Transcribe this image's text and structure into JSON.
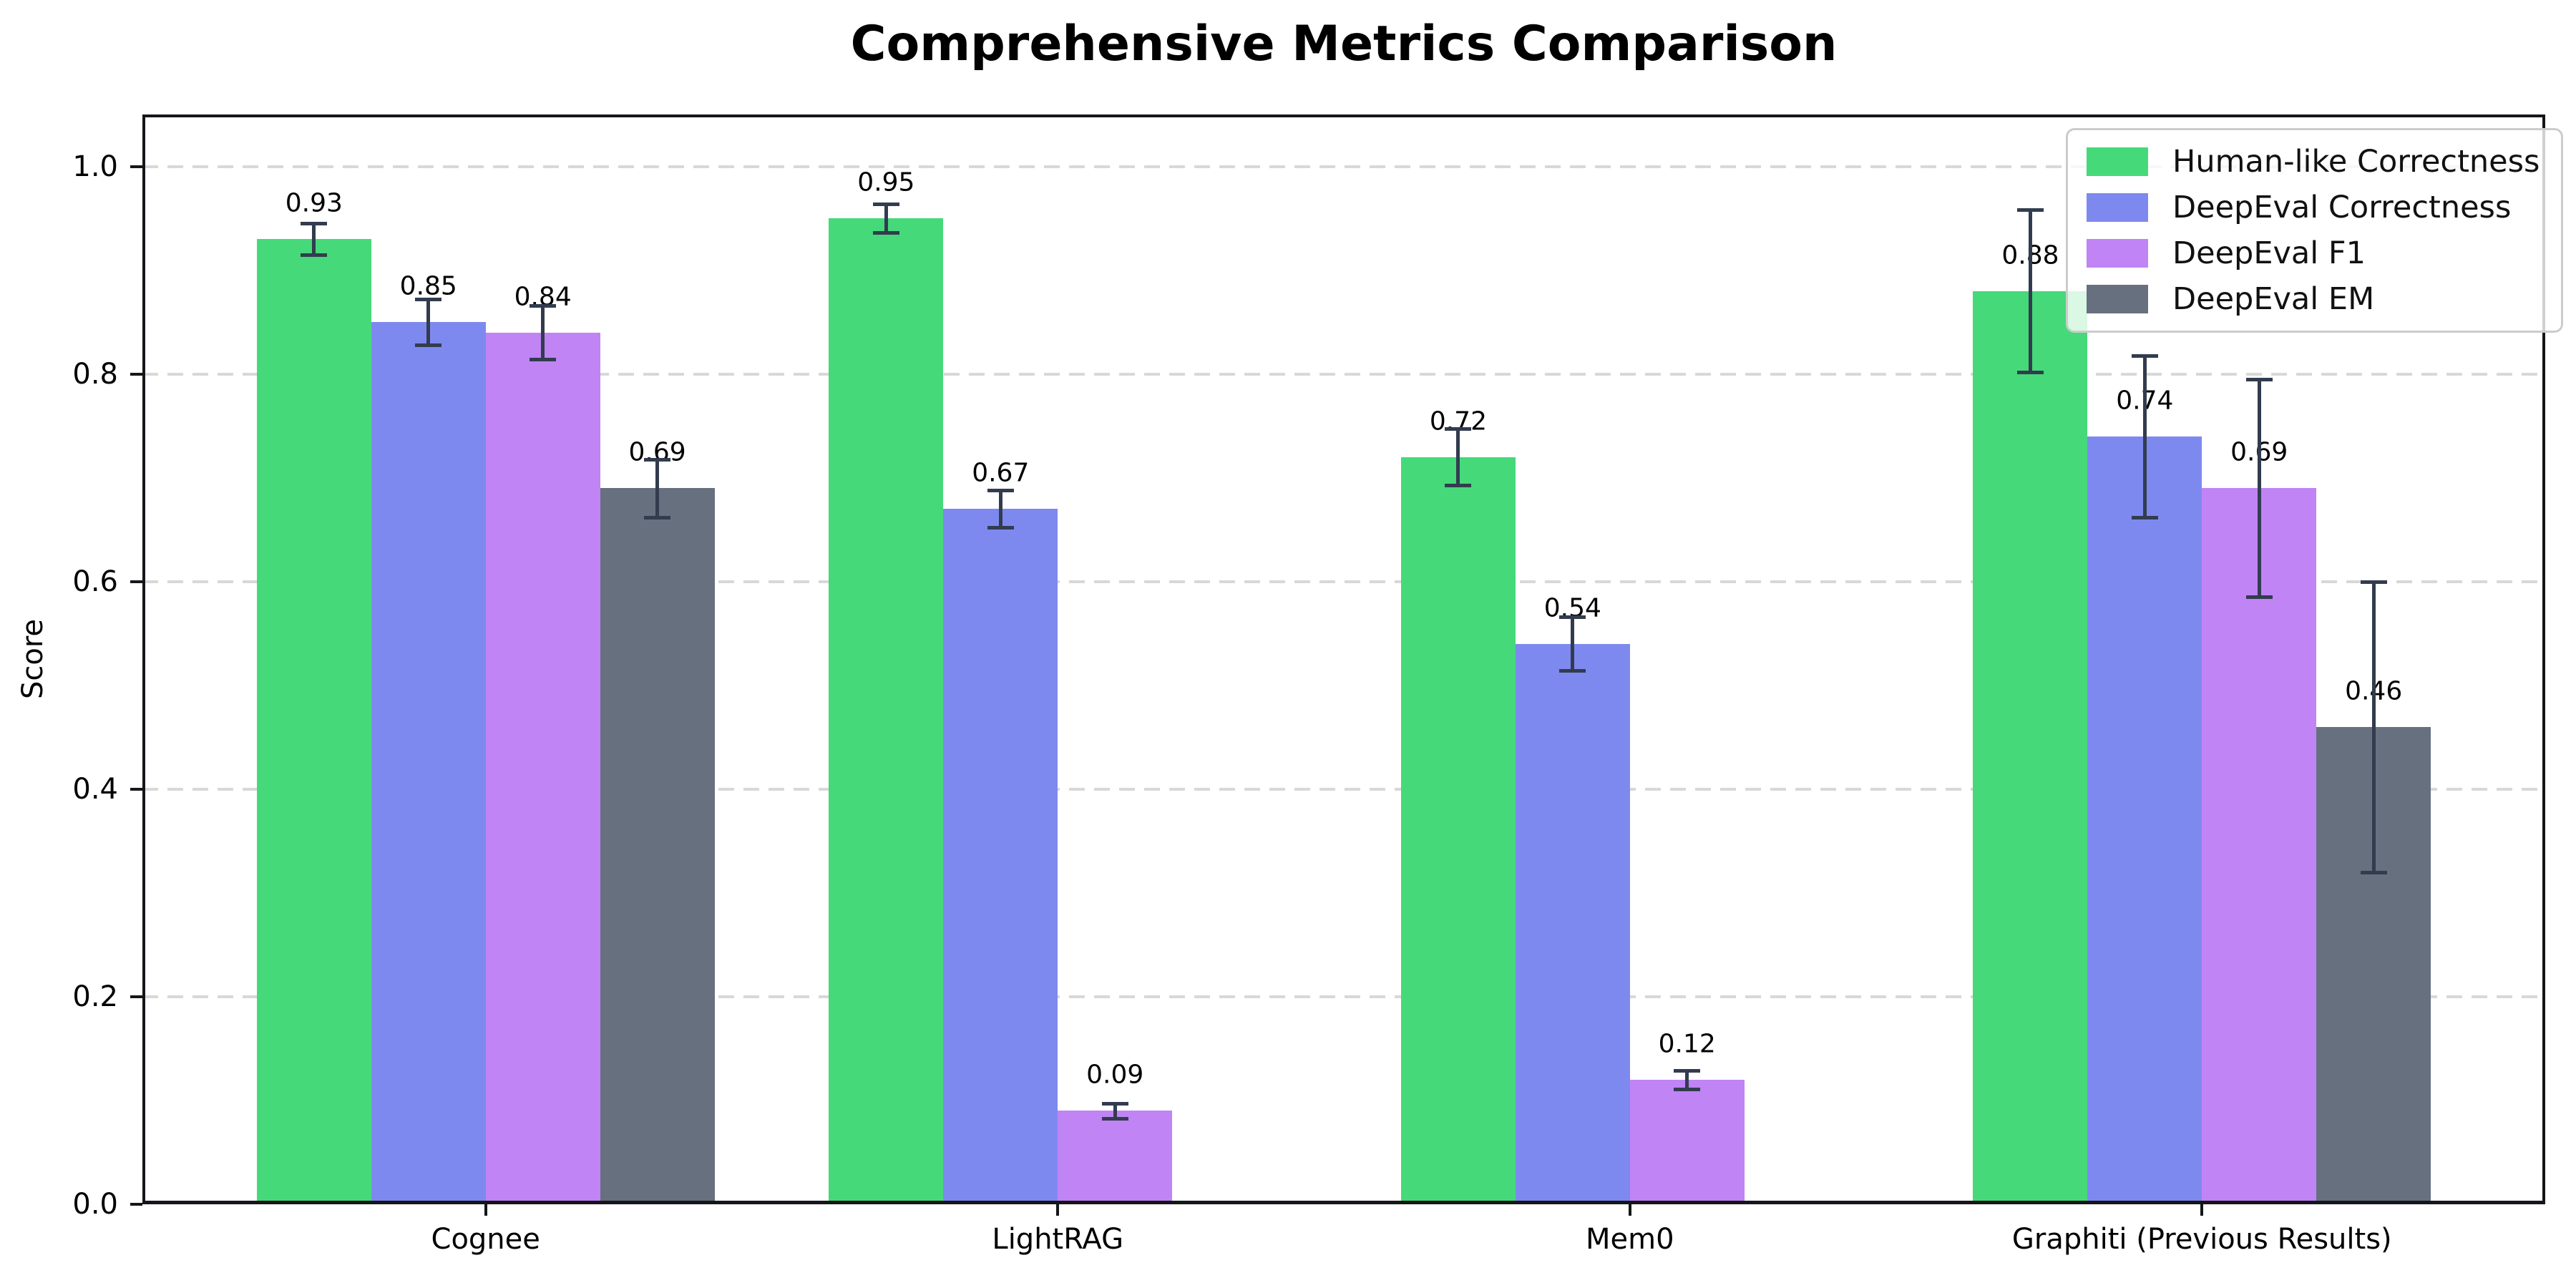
{
  "chart_data": {
    "type": "bar",
    "title": "Comprehensive Metrics Comparison",
    "xlabel": "",
    "ylabel": "Score",
    "categories": [
      "Cognee",
      "LightRAG",
      "Mem0",
      "Graphiti (Previous Results)"
    ],
    "series": [
      {
        "name": "Human-like Correctness",
        "color": "#45d97a",
        "values": [
          0.93,
          0.95,
          0.72,
          0.88
        ],
        "errors": [
          0.015,
          0.014,
          0.027,
          0.078
        ],
        "labels": [
          "0.93",
          "0.95",
          "0.72",
          "0.88"
        ]
      },
      {
        "name": "DeepEval Correctness",
        "color": "#7e89f0",
        "values": [
          0.85,
          0.67,
          0.54,
          0.74
        ],
        "errors": [
          0.022,
          0.018,
          0.026,
          0.078
        ],
        "labels": [
          "0.85",
          "0.67",
          "0.54",
          "0.74"
        ]
      },
      {
        "name": "DeepEval F1",
        "color": "#c084f5",
        "values": [
          0.84,
          0.09,
          0.12,
          0.69
        ],
        "errors": [
          0.026,
          0.007,
          0.009,
          0.105
        ],
        "labels": [
          "0.84",
          "0.09",
          "0.12",
          "0.69"
        ]
      },
      {
        "name": "DeepEval EM",
        "color": "#66707f",
        "values": [
          0.69,
          0.0,
          0.0,
          0.46
        ],
        "errors": [
          0.028,
          0.002,
          0.002,
          0.14
        ],
        "labels": [
          "0.69",
          "",
          "",
          "0.46"
        ]
      }
    ],
    "ylim": [
      0,
      1.05
    ],
    "yticks": [
      0.0,
      0.2,
      0.4,
      0.6,
      0.8,
      1.0
    ],
    "ytick_labels": [
      "0.0",
      "0.2",
      "0.4",
      "0.6",
      "0.8",
      "1.0"
    ],
    "grid": "horizontal-dashed",
    "legend_position": "upper right",
    "colors": {
      "error_bar": "#323c4e",
      "gridline": "#d8d8d8",
      "spine": "#14161a",
      "background": "#ffffff",
      "text": "#000000"
    }
  }
}
